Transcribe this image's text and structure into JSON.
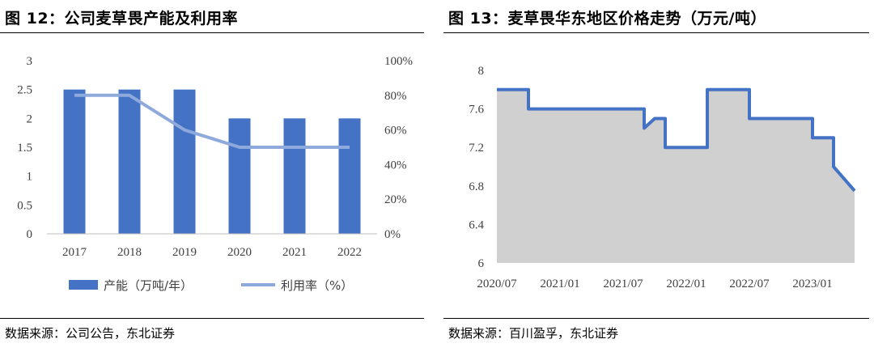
{
  "left": {
    "title": "图 12：公司麦草畏产能及利用率",
    "source": "数据来源：公司公告，东北证券"
  },
  "right": {
    "title": "图 13：麦草畏华东地区价格走势（万元/吨）",
    "source": "数据来源：百川盈孚，东北证券"
  },
  "colors": {
    "bar": "#4472C4",
    "line": "#8EA9DB",
    "price_line": "#4472C4",
    "price_fill": "#D0D0D0",
    "axis": "#BFBFBF"
  },
  "chart_data": [
    {
      "type": "bar",
      "categories": [
        "2017",
        "2018",
        "2019",
        "2020",
        "2021",
        "2022"
      ],
      "series": [
        {
          "name": "产能（万吨/年）",
          "type": "bar",
          "axis": "left",
          "values": [
            2.5,
            2.5,
            2.5,
            2.0,
            2.0,
            2.0
          ]
        },
        {
          "name": "利用率（%）",
          "type": "line",
          "axis": "right",
          "values": [
            80,
            80,
            60,
            50,
            50,
            50
          ]
        }
      ],
      "y_left": {
        "min": 0,
        "max": 3,
        "ticks": [
          "0",
          "0.5",
          "1",
          "1.5",
          "2",
          "2.5",
          "3"
        ]
      },
      "y_right": {
        "min": 0,
        "max": 100,
        "ticks": [
          "0%",
          "20%",
          "40%",
          "60%",
          "80%",
          "100%"
        ]
      },
      "legend_position": "bottom",
      "grid": false
    },
    {
      "type": "area",
      "x_ticks": [
        "2020/07",
        "2021/01",
        "2021/07",
        "2022/01",
        "2022/07",
        "2023/01"
      ],
      "x_range": [
        "2020/07",
        "2023/05"
      ],
      "ylim": [
        6,
        8
      ],
      "y_ticks": [
        "6",
        "6.4",
        "6.8",
        "7.2",
        "7.6",
        "8"
      ],
      "series": [
        {
          "x": [
            "2020/07",
            "2020/10",
            "2020/10",
            "2021/09",
            "2021/09",
            "2021/10",
            "2021/10",
            "2021/11",
            "2021/11",
            "2022/03",
            "2022/03",
            "2022/07",
            "2022/07",
            "2022/08",
            "2022/08",
            "2022/09",
            "2022/09",
            "2022/10",
            "2022/10",
            "2022/11",
            "2022/11",
            "2023/01",
            "2023/01",
            "2023/03",
            "2023/03",
            "2023/05"
          ],
          "y": [
            7.8,
            7.8,
            7.6,
            7.6,
            7.4,
            7.5,
            7.5,
            7.5,
            7.2,
            7.2,
            7.8,
            7.8,
            7.5,
            7.5,
            7.5,
            7.5,
            7.5,
            7.5,
            7.5,
            7.5,
            7.5,
            7.5,
            7.3,
            7.3,
            7.0,
            6.75
          ]
        }
      ],
      "grid": false
    }
  ]
}
